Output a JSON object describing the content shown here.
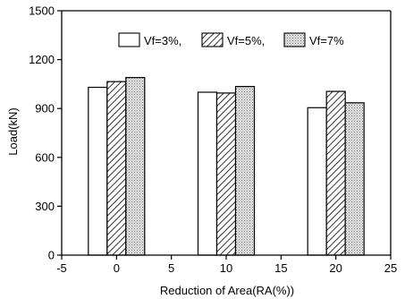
{
  "chart_data": {
    "type": "bar",
    "xlabel": "Reduction of Area(RA(%))",
    "ylabel": "Load(kN)",
    "xlim": [
      -5,
      25
    ],
    "ylim": [
      0,
      1500
    ],
    "xticks": [
      -5,
      0,
      5,
      10,
      15,
      20,
      25
    ],
    "yticks": [
      0,
      300,
      600,
      900,
      1200,
      1500
    ],
    "legend_position": "top-right",
    "grid": false,
    "x": [
      0,
      10,
      20
    ],
    "series": [
      {
        "name": "Vf=3%,",
        "fill": "#ffffff",
        "pattern": "none",
        "values": [
          1030,
          1000,
          905
        ]
      },
      {
        "name": "Vf=5%,",
        "fill": "#ffffff",
        "pattern": "diagonal-hatch",
        "values": [
          1065,
          995,
          1005
        ]
      },
      {
        "name": "Vf=7%",
        "fill": "#dcdcdc",
        "pattern": "dots",
        "values": [
          1090,
          1035,
          935
        ]
      }
    ]
  }
}
